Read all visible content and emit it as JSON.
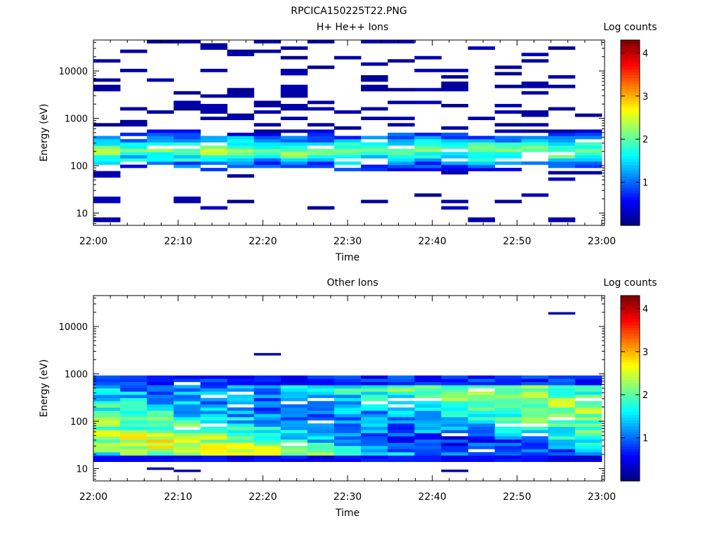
{
  "figure_title": "RPCICA150225T22.PNG",
  "chart_data": [
    {
      "type": "heatmap",
      "title": "H+ He++ Ions",
      "xlabel": "Time",
      "ylabel": "Energy (eV)",
      "yscale": "log",
      "ylim": [
        5.5,
        45000
      ],
      "x_ticks": [
        "22:00",
        "22:10",
        "22:20",
        "22:30",
        "22:40",
        "22:50",
        "23:00"
      ],
      "y_ticks": [
        10,
        100,
        1000,
        10000
      ],
      "y_tick_labels": [
        "10",
        "100",
        "1000",
        "10000"
      ],
      "colorbar": {
        "label": "Log counts",
        "min": 0,
        "max": 4.3,
        "ticks": [
          "1",
          "2",
          "3",
          "4"
        ],
        "colormap": "jet"
      },
      "time_bins": 19,
      "energy_bins": 58,
      "grid": false,
      "band": {
        "center_bin": 23,
        "half_width": 5.5,
        "peak_log_counts": 2.3,
        "high_energy_tail_bins": [
          40,
          53
        ],
        "low_energy_bins": [
          8,
          14
        ],
        "notable_low_energy_cells": [
          {
            "time_bin": 0,
            "bin": 2,
            "log_counts": 0.2
          },
          {
            "time_bin": 14,
            "bin": 2,
            "log_counts": 0.2
          },
          {
            "time_bin": 17,
            "bin": 2,
            "log_counts": 0.2
          }
        ]
      }
    },
    {
      "type": "heatmap",
      "title": "Other Ions",
      "xlabel": "Time",
      "ylabel": "Energy (eV)",
      "yscale": "log",
      "ylim": [
        5.5,
        45000
      ],
      "x_ticks": [
        "22:00",
        "22:10",
        "22:20",
        "22:30",
        "22:40",
        "22:50",
        "23:00"
      ],
      "y_ticks": [
        10,
        100,
        1000,
        10000
      ],
      "y_tick_labels": [
        "10",
        "100",
        "1000",
        "10000"
      ],
      "colorbar": {
        "label": "Log counts",
        "min": 0,
        "max": 4.3,
        "ticks": [
          "1",
          "2",
          "3",
          "4"
        ],
        "colormap": "jet"
      },
      "time_bins": 19,
      "energy_bins": 58,
      "grid": false,
      "band": {
        "energy_range_eV": [
          17,
          800
        ],
        "peak_log_counts": 3.0,
        "bottom_row_log_counts": 0.3,
        "notable_cells": [
          {
            "time_bin": 6,
            "energy_eV": 2600,
            "log_counts": 0.2
          },
          {
            "time_bin": 17,
            "energy_eV": 19000,
            "log_counts": 0.2
          },
          {
            "time_bin": 3,
            "energy_eV": 9,
            "log_counts": 0.15
          },
          {
            "time_bin": 2,
            "energy_eV": 10,
            "log_counts": 0.3
          },
          {
            "time_bin": 13,
            "energy_eV": 9,
            "log_counts": 0.15
          }
        ]
      }
    }
  ]
}
